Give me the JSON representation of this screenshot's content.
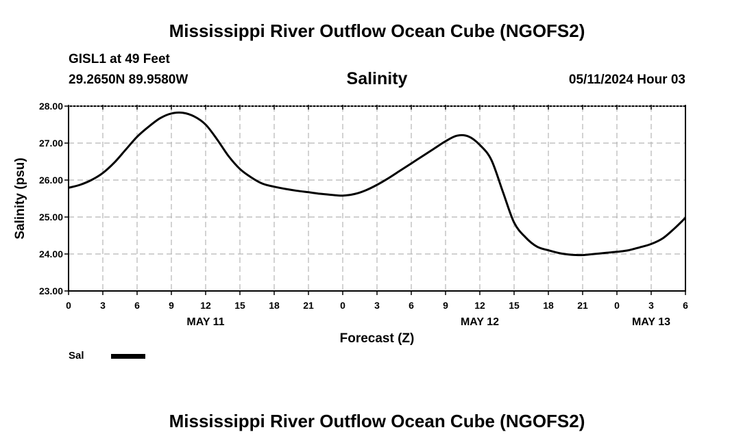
{
  "header": {
    "title": "Mississippi River Outflow Ocean Cube (NGOFS2)",
    "station": "GISL1 at 49 Feet",
    "coordinates": "29.2650N  89.9580W",
    "datetime": "05/11/2024 Hour 03"
  },
  "footer": {
    "title": "Mississippi River Outflow Ocean Cube (NGOFS2)"
  },
  "legend": {
    "label": "Sal",
    "color": "#000000"
  },
  "chart_data": {
    "type": "line",
    "title": "Salinity",
    "xlabel": "Forecast (Z)",
    "ylabel": "Salinity (psu)",
    "grid": true,
    "xlim": [
      0,
      54
    ],
    "ylim": [
      23.0,
      28.0
    ],
    "yticks": [
      "23.00",
      "24.00",
      "25.00",
      "26.00",
      "27.00",
      "28.00"
    ],
    "xticks": [
      {
        "hour": 0,
        "label": "0"
      },
      {
        "hour": 3,
        "label": "3"
      },
      {
        "hour": 6,
        "label": "6"
      },
      {
        "hour": 9,
        "label": "9"
      },
      {
        "hour": 12,
        "label": "12"
      },
      {
        "hour": 15,
        "label": "15"
      },
      {
        "hour": 18,
        "label": "18"
      },
      {
        "hour": 21,
        "label": "21"
      },
      {
        "hour": 24,
        "label": "0"
      },
      {
        "hour": 27,
        "label": "3"
      },
      {
        "hour": 30,
        "label": "6"
      },
      {
        "hour": 33,
        "label": "9"
      },
      {
        "hour": 36,
        "label": "12"
      },
      {
        "hour": 39,
        "label": "15"
      },
      {
        "hour": 42,
        "label": "18"
      },
      {
        "hour": 45,
        "label": "21"
      },
      {
        "hour": 48,
        "label": "0"
      },
      {
        "hour": 51,
        "label": "3"
      },
      {
        "hour": 54,
        "label": "6"
      }
    ],
    "day_labels": [
      {
        "hour": 12,
        "label": "MAY 11"
      },
      {
        "hour": 36,
        "label": "MAY 12"
      },
      {
        "hour": 51,
        "label": "MAY 13"
      }
    ],
    "series": [
      {
        "name": "Sal",
        "x": [
          0,
          1,
          2,
          3,
          4,
          5,
          6,
          7,
          8,
          9,
          10,
          11,
          12,
          13,
          14,
          15,
          16,
          17,
          18,
          19,
          20,
          21,
          22,
          23,
          24,
          25,
          26,
          27,
          28,
          29,
          30,
          31,
          32,
          33,
          34,
          35,
          36,
          37,
          38,
          39,
          40,
          41,
          42,
          43,
          44,
          45,
          46,
          47,
          48,
          49,
          50,
          51,
          52,
          53,
          54
        ],
        "values": [
          25.79,
          25.87,
          26.0,
          26.19,
          26.47,
          26.82,
          27.17,
          27.44,
          27.67,
          27.8,
          27.82,
          27.72,
          27.5,
          27.1,
          26.65,
          26.3,
          26.07,
          25.9,
          25.82,
          25.76,
          25.71,
          25.67,
          25.63,
          25.6,
          25.58,
          25.62,
          25.72,
          25.87,
          26.05,
          26.25,
          26.45,
          26.65,
          26.85,
          27.05,
          27.2,
          27.18,
          26.95,
          26.55,
          25.7,
          24.85,
          24.45,
          24.2,
          24.1,
          24.02,
          23.98,
          23.97,
          24.0,
          24.03,
          24.06,
          24.1,
          24.18,
          24.27,
          24.42,
          24.68,
          24.98
        ]
      }
    ]
  }
}
